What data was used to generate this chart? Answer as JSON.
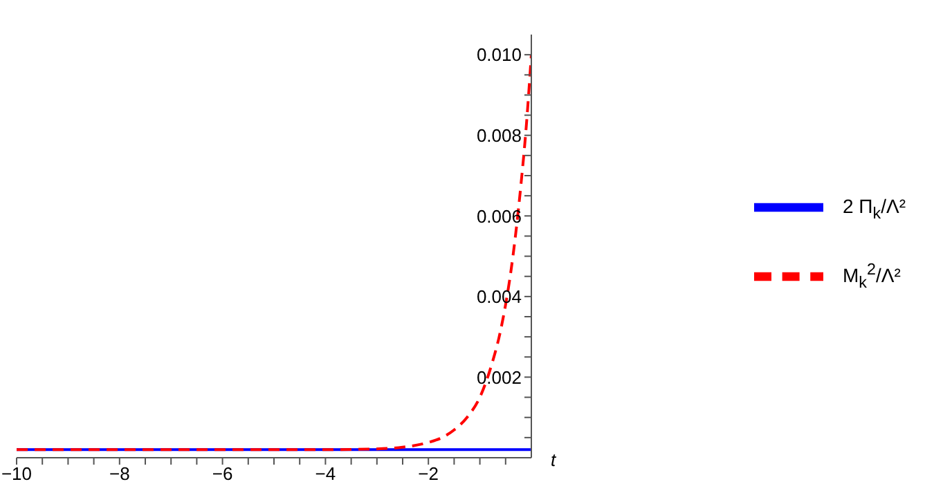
{
  "chart_data": {
    "type": "line",
    "xlabel": "t",
    "legend": "right",
    "marker": "none",
    "x": [
      -10,
      -6,
      -4,
      -3,
      -2.5,
      -2,
      -1.75,
      -1.5,
      -1.25,
      -1,
      -0.875,
      -0.75,
      -0.625,
      -0.5,
      -0.4,
      -0.3,
      -0.2,
      -0.1,
      0
    ],
    "series": [
      {
        "name": "2 Π$_{k}$/Λ²",
        "color": "#0000ff",
        "line_style": "solid",
        "x": [
          -10,
          0
        ],
        "values": [
          0.0002,
          0.0002
        ]
      },
      {
        "name": "M$_{k}$$^{2}$/Λ²",
        "color": "#ff0000",
        "line_style": "dashed",
        "values": [
          0.0002,
          0.0002,
          0.0002,
          0.00022,
          0.00026,
          0.00038,
          0.00049,
          0.00069,
          0.001,
          0.0015,
          0.0019,
          0.0024,
          0.003,
          0.0038,
          0.0046,
          0.0056,
          0.0068,
          0.0082,
          0.01
        ]
      }
    ],
    "xlim": [
      -10,
      0
    ],
    "xticks": [
      -10,
      {
        "value": -9.5,
        "label": null
      },
      {
        "value": -9,
        "label": null
      },
      {
        "value": -8.5,
        "label": null
      },
      -8,
      {
        "value": -7.5,
        "label": null
      },
      {
        "value": -7,
        "label": null
      },
      {
        "value": -6.5,
        "label": null
      },
      -6,
      {
        "value": -5.5,
        "label": null
      },
      {
        "value": -5,
        "label": null
      },
      {
        "value": -4.5,
        "label": null
      },
      -4,
      {
        "value": -3.5,
        "label": null
      },
      {
        "value": -3,
        "label": null
      },
      {
        "value": -2.5,
        "label": null
      },
      -2,
      {
        "value": -1.5,
        "label": null
      },
      {
        "value": -1,
        "label": null
      },
      {
        "value": -0.5,
        "label": null
      }
    ],
    "ylim": [
      0,
      0.0105
    ],
    "yticks": [
      {
        "value": 0.0005,
        "label": null
      },
      {
        "value": 0.001,
        "label": null
      },
      {
        "value": 0.0015,
        "label": null
      },
      {
        "value": 0.002,
        "label": "0.002"
      },
      {
        "value": 0.0025,
        "label": null
      },
      {
        "value": 0.003,
        "label": null
      },
      {
        "value": 0.0035,
        "label": null
      },
      {
        "value": 0.004,
        "label": "0.004"
      },
      {
        "value": 0.0045,
        "label": null
      },
      {
        "value": 0.005,
        "label": null
      },
      {
        "value": 0.0055,
        "label": null
      },
      {
        "value": 0.006,
        "label": "0.006"
      },
      {
        "value": 0.0065,
        "label": null
      },
      {
        "value": 0.007,
        "label": null
      },
      {
        "value": 0.0075,
        "label": null
      },
      {
        "value": 0.008,
        "label": "0.008"
      },
      {
        "value": 0.0085,
        "label": null
      },
      {
        "value": 0.009,
        "label": null
      },
      {
        "value": 0.0095,
        "label": null
      },
      {
        "value": 0.01,
        "label": "0.010"
      }
    ]
  }
}
